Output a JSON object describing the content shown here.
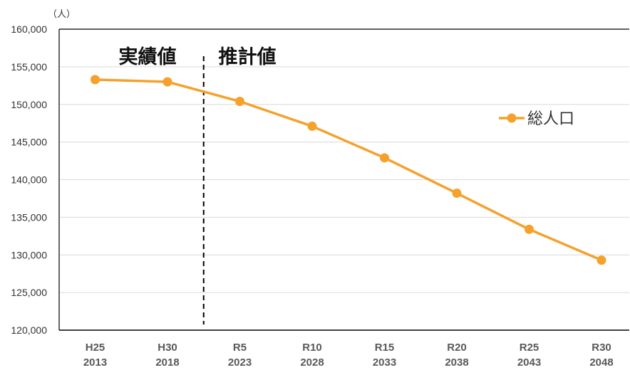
{
  "chart_data": {
    "type": "line",
    "categories": [
      "H25",
      "H30",
      "R5",
      "R10",
      "R15",
      "R20",
      "R25",
      "R30"
    ],
    "category_years": [
      "2013",
      "2018",
      "2023",
      "2028",
      "2033",
      "2038",
      "2043",
      "2048"
    ],
    "series": [
      {
        "name": "総人口",
        "values": [
          153300,
          153000,
          150400,
          147100,
          142900,
          138200,
          133400,
          129300
        ]
      }
    ],
    "ylabel": "（人）",
    "ylim": [
      120000,
      160000
    ],
    "yticks": [
      120000,
      125000,
      130000,
      135000,
      140000,
      145000,
      150000,
      155000,
      160000
    ],
    "ytick_labels": [
      "120,000",
      "125,000",
      "130,000",
      "135,000",
      "140,000",
      "145,000",
      "150,000",
      "155,000",
      "160,000"
    ],
    "grid": true,
    "legend": {
      "position": "right"
    },
    "annotations": [
      "実績値",
      "推計値"
    ],
    "divider_after_index": 1
  },
  "colors": {
    "series": "#F5A12C",
    "grid": "#D9D9D9",
    "axis": "#000000",
    "divider": "#000000"
  }
}
